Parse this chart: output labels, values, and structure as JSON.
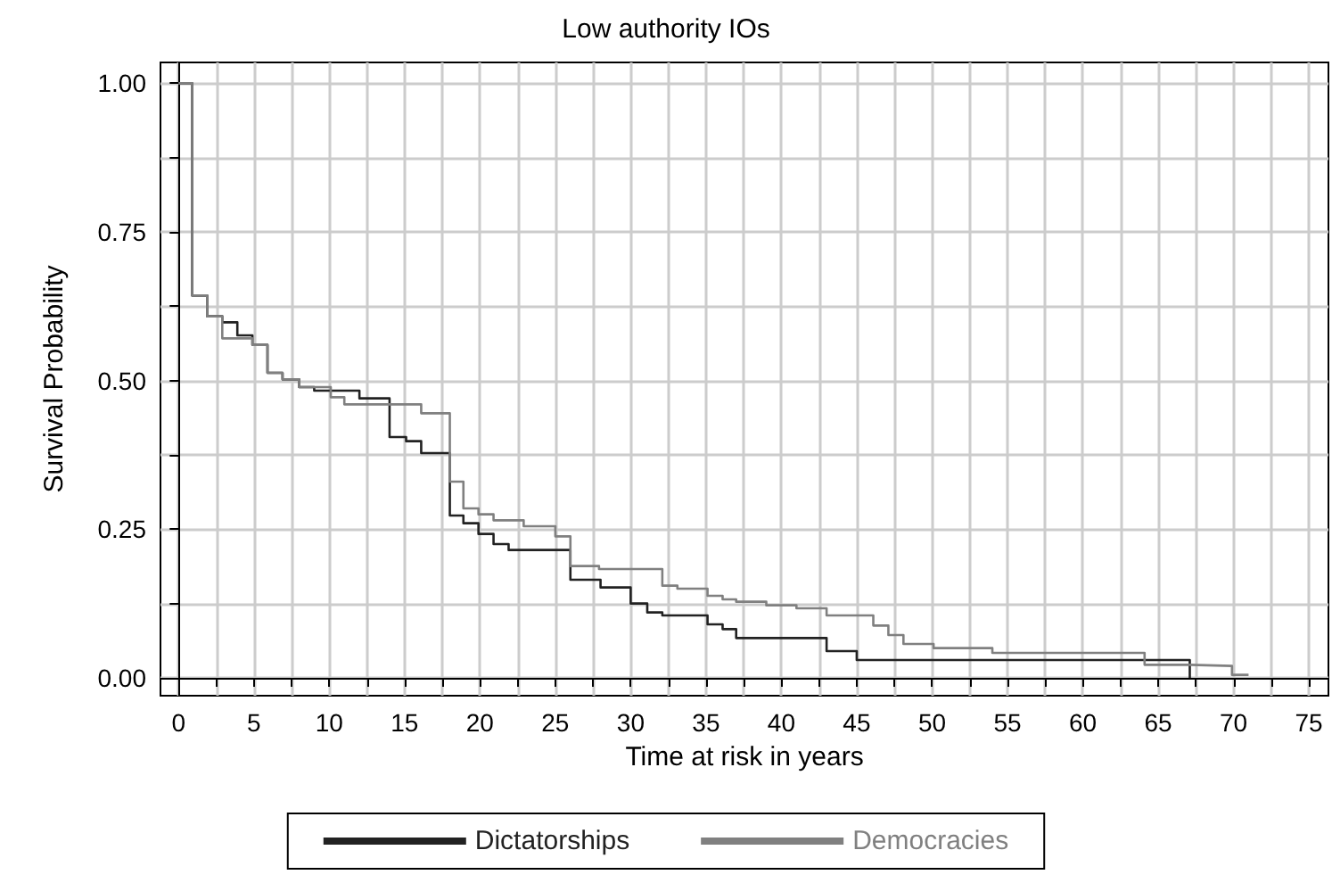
{
  "chart_data": {
    "type": "step",
    "title": "Low authority IOs",
    "xlabel": "Time at risk in years",
    "ylabel": "Survival Probability",
    "xlim": [
      -1.2,
      76.3
    ],
    "ylim": [
      -0.03,
      1.035
    ],
    "xticks": [
      0,
      {
        "value": 2.5,
        "label": null
      },
      5,
      {
        "value": 7.5,
        "label": null
      },
      10,
      {
        "value": 12.5,
        "label": null
      },
      15,
      {
        "value": 17.5,
        "label": null
      },
      20,
      {
        "value": 22.5,
        "label": null
      },
      25,
      {
        "value": 27.5,
        "label": null
      },
      30,
      {
        "value": 32.5,
        "label": null
      },
      35,
      {
        "value": 37.5,
        "label": null
      },
      40,
      {
        "value": 42.5,
        "label": null
      },
      45,
      {
        "value": 47.5,
        "label": null
      },
      50,
      {
        "value": 52.5,
        "label": null
      },
      55,
      {
        "value": 57.5,
        "label": null
      },
      60,
      {
        "value": 62.5,
        "label": null
      },
      65,
      {
        "value": 67.5,
        "label": null
      },
      70,
      {
        "value": 72.5,
        "label": null
      },
      75
    ],
    "yticks": [
      {
        "value": 0,
        "label": "0.00"
      },
      {
        "value": 0.125,
        "label": null
      },
      {
        "value": 0.25,
        "label": "0.25"
      },
      {
        "value": 0.375,
        "label": null
      },
      {
        "value": 0.5,
        "label": "0.50"
      },
      {
        "value": 0.625,
        "label": null
      },
      {
        "value": 0.75,
        "label": "0.75"
      },
      {
        "value": 0.875,
        "label": null
      },
      {
        "value": 1,
        "label": "1.00"
      }
    ],
    "grid": true,
    "legend": "bottom",
    "marker": "none",
    "line_style": "solid",
    "series": [
      {
        "name": "Dictatorships",
        "color": "#222222",
        "x": [
          0,
          0.9,
          1.9,
          2.9,
          3.9,
          4.9,
          5.9,
          6.9,
          8,
          9,
          12,
          14,
          15.1,
          16.1,
          18,
          18.9,
          19.9,
          20.9,
          21.9,
          26,
          28,
          30,
          31.1,
          32.1,
          35.1,
          36.1,
          37,
          43,
          45,
          67.1
        ],
        "values": [
          1,
          0.643,
          0.608,
          0.598,
          0.576,
          0.56,
          0.513,
          0.502,
          0.489,
          0.483,
          0.47,
          0.405,
          0.398,
          0.378,
          0.273,
          0.26,
          0.242,
          0.225,
          0.215,
          0.165,
          0.152,
          0.125,
          0.11,
          0.105,
          0.09,
          0.082,
          0.067,
          0.045,
          0.03,
          0
        ]
      },
      {
        "name": "Democracies",
        "color": "#808080",
        "x": [
          0,
          0.9,
          1.9,
          2.9,
          4.9,
          5.9,
          6.9,
          8,
          10.1,
          11,
          16.1,
          18,
          18.9,
          19.9,
          20.9,
          22.9,
          25,
          26,
          27.9,
          32.1,
          33.1,
          35.1,
          36.1,
          37,
          39,
          41,
          43,
          46.1,
          47.1,
          48.1,
          50.1,
          54,
          64.1,
          67.1,
          69.9,
          71
        ],
        "values": [
          1,
          0.643,
          0.608,
          0.571,
          0.56,
          0.513,
          0.502,
          0.489,
          0.472,
          0.46,
          0.445,
          0.33,
          0.285,
          0.275,
          0.265,
          0.255,
          0.238,
          0.188,
          0.183,
          0.155,
          0.15,
          0.138,
          0.132,
          0.128,
          0.122,
          0.117,
          0.105,
          0.088,
          0.072,
          0.057,
          0.05,
          0.042,
          0.022,
          0.02,
          0.005,
          0.005
        ]
      }
    ]
  }
}
